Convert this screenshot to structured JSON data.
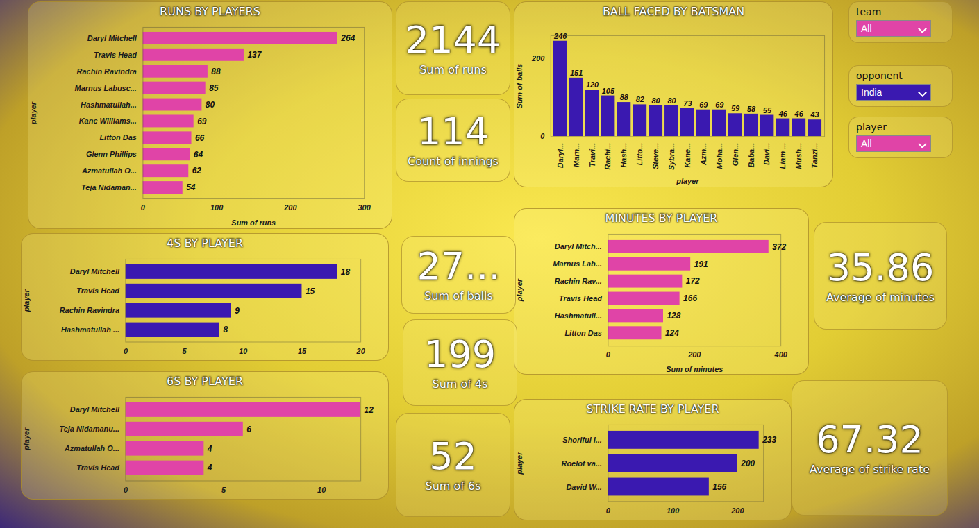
{
  "chart_data": [
    {
      "type": "bar",
      "orientation": "horizontal",
      "title": "RUNS BY PLAYERS",
      "categories": [
        "Daryl Mitchell",
        "Travis Head",
        "Rachin Ravindra",
        "Marnus Labusc...",
        "Hashmatullah...",
        "Kane Williams...",
        "Litton Das",
        "Glenn Phillips",
        "Azmatullah O...",
        "Teja Nidaman..."
      ],
      "values": [
        264,
        137,
        88,
        85,
        80,
        69,
        66,
        64,
        62,
        54
      ],
      "color": "#e044a7",
      "xlim": [
        0,
        300
      ],
      "xticks": [
        0,
        100,
        200,
        300
      ],
      "x_label": "Sum of runs",
      "y_label": "player",
      "data_labels": true
    },
    {
      "type": "bar",
      "title": "BALL FACED BY BATSMAN",
      "categories": [
        "Daryl...",
        "Marn...",
        "Travi...",
        "Rachi...",
        "Hash...",
        "Litto...",
        "Steve...",
        "Sybra...",
        "Kane...",
        "Azm...",
        "Moha...",
        "Glen...",
        "Baba...",
        "Davi...",
        "Liam ...",
        "Mush...",
        "Tanzi..."
      ],
      "values": [
        246,
        151,
        120,
        105,
        88,
        82,
        80,
        80,
        73,
        69,
        69,
        59,
        58,
        55,
        46,
        46,
        43
      ],
      "color": "#3a19b0",
      "ylim": [
        0,
        260
      ],
      "yticks": [
        0,
        200
      ],
      "x_label": "player",
      "y_label": "Sum of balls",
      "data_labels": true
    },
    {
      "type": "bar",
      "orientation": "horizontal",
      "title": "4S BY PLAYER",
      "categories": [
        "Daryl Mitchell",
        "Travis Head",
        "Rachin Ravindra",
        "Hashmatullah ..."
      ],
      "values": [
        18,
        15,
        9,
        8
      ],
      "color": "#3a19b0",
      "xlim": [
        0,
        20
      ],
      "xticks": [
        0,
        5,
        10,
        15,
        20
      ],
      "y_label": "player",
      "data_labels": true
    },
    {
      "type": "bar",
      "orientation": "horizontal",
      "title": "6S BY PLAYER",
      "categories": [
        "Daryl Mitchell",
        "Teja Nidamanu...",
        "Azmatullah O...",
        "Travis Head"
      ],
      "values": [
        12,
        6,
        4,
        4
      ],
      "color": "#e044a7",
      "xlim": [
        0,
        12
      ],
      "xticks": [
        0,
        5,
        10
      ],
      "y_label": "player",
      "data_labels": true
    },
    {
      "type": "bar",
      "orientation": "horizontal",
      "title": "MINUTES BY PLAYER",
      "categories": [
        "Daryl Mitch...",
        "Marnus Lab...",
        "Rachin Rav...",
        "Travis Head",
        "Hashmatull...",
        "Litton Das"
      ],
      "values": [
        372,
        191,
        172,
        166,
        128,
        124
      ],
      "color": "#e044a7",
      "xlim": [
        0,
        400
      ],
      "xticks": [
        0,
        200,
        400
      ],
      "x_label": "Sum of minutes",
      "y_label": "player",
      "data_labels": true
    },
    {
      "type": "bar",
      "orientation": "horizontal",
      "title": "STRIKE RATE BY PLAYER",
      "categories": [
        "Shoriful I...",
        "Roelof va...",
        "David W..."
      ],
      "values": [
        233,
        200,
        156
      ],
      "color": "#3a19b0",
      "xlim": [
        0,
        240
      ],
      "xticks": [
        0,
        100,
        200
      ],
      "y_label": "player",
      "data_labels": true
    }
  ],
  "cards": [
    {
      "value": 2144,
      "label": "Sum of runs"
    },
    {
      "value": 114,
      "label": "Count of innings"
    },
    {
      "value": "27...",
      "label": "Sum of balls"
    },
    {
      "value": 199,
      "label": "Sum of 4s"
    },
    {
      "value": 52,
      "label": "Sum of 6s"
    },
    {
      "value": 35.86,
      "label": "Average of minutes"
    },
    {
      "value": 67.32,
      "label": "Average of strike rate"
    }
  ],
  "filters": [
    {
      "label": "team",
      "selected": "All"
    },
    {
      "label": "opponent",
      "selected": "India"
    },
    {
      "label": "player",
      "selected": "All"
    }
  ]
}
